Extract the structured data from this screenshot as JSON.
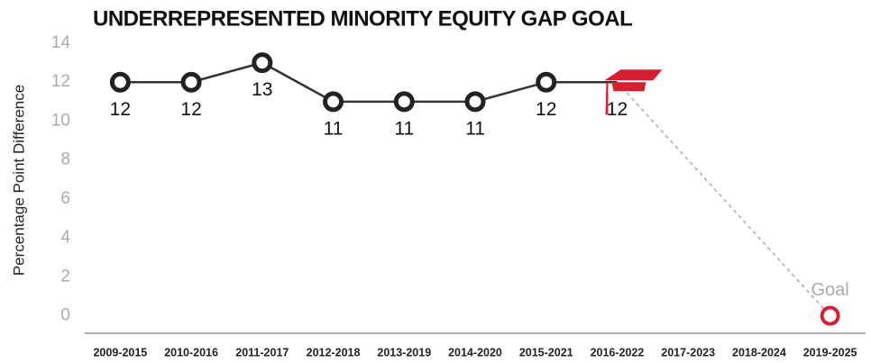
{
  "chart_data": {
    "type": "line",
    "title": "UNDERREPRESENTED MINORITY EQUITY GAP GOAL",
    "y_label": "Percentage Point Difference",
    "categories": [
      "2009-2015",
      "2010-2016",
      "2011-2017",
      "2012-2018",
      "2013-2019",
      "2014-2020",
      "2015-2021",
      "2016-2022",
      "2017-2023",
      "2018-2024",
      "2019-2025"
    ],
    "series": [
      {
        "color": "#222222",
        "values": [
          12,
          12,
          13,
          11,
          11,
          11,
          12,
          12,
          null,
          null,
          null
        ]
      },
      {
        "name": "Goal",
        "color": "#d42030",
        "values": [
          null,
          null,
          null,
          null,
          null,
          null,
          null,
          12,
          null,
          null,
          0
        ]
      }
    ],
    "ylim": [
      -0.9,
      14
    ],
    "yticks": [
      0,
      2,
      4,
      6,
      8,
      10,
      12,
      14
    ],
    "grid": false
  }
}
